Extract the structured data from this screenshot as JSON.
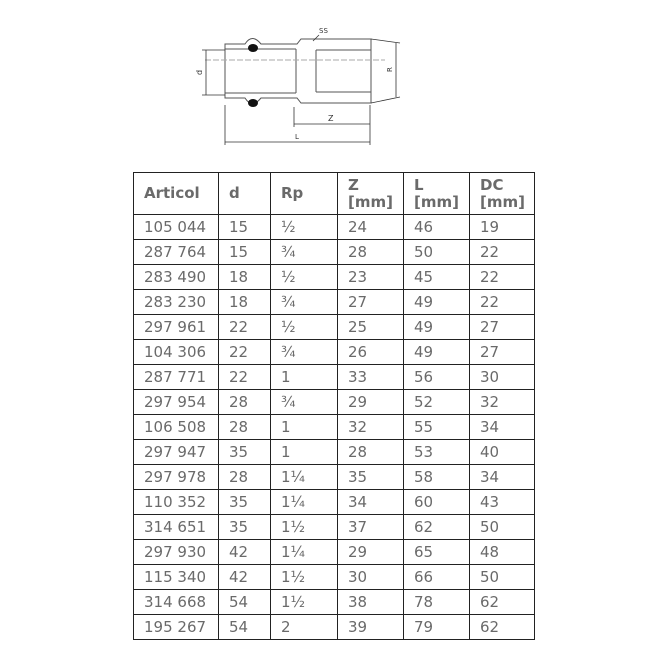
{
  "drawing": {
    "labels": {
      "ss": "SS",
      "d": "d",
      "r": "R",
      "z": "Z",
      "l": "L"
    }
  },
  "table": {
    "headers": [
      "Articol",
      "d",
      "Rp",
      "Z [mm]",
      "L [mm]",
      "DC [mm]"
    ],
    "rows": [
      [
        "105 044",
        "15",
        "½",
        "24",
        "46",
        "19"
      ],
      [
        "287 764",
        "15",
        "¾",
        "28",
        "50",
        "22"
      ],
      [
        "283 490",
        "18",
        "½",
        "23",
        "45",
        "22"
      ],
      [
        "283 230",
        "18",
        "¾",
        "27",
        "49",
        "22"
      ],
      [
        "297 961",
        "22",
        "½",
        "25",
        "49",
        "27"
      ],
      [
        "104 306",
        "22",
        "¾",
        "26",
        "49",
        "27"
      ],
      [
        "287 771",
        "22",
        "1",
        "33",
        "56",
        "30"
      ],
      [
        "297 954",
        "28",
        "¾",
        "29",
        "52",
        "32"
      ],
      [
        "106 508",
        "28",
        "1",
        "32",
        "55",
        "34"
      ],
      [
        "297 947",
        "35",
        "1",
        "28",
        "53",
        "40"
      ],
      [
        "297 978",
        "28",
        "1¼",
        "35",
        "58",
        "34"
      ],
      [
        "110 352",
        "35",
        "1¼",
        "34",
        "60",
        "43"
      ],
      [
        "314 651",
        "35",
        "1½",
        "37",
        "62",
        "50"
      ],
      [
        "297 930",
        "42",
        "1¼",
        "29",
        "65",
        "48"
      ],
      [
        "115 340",
        "42",
        "1½",
        "30",
        "66",
        "50"
      ],
      [
        "314 668",
        "54",
        "1½",
        "38",
        "78",
        "62"
      ],
      [
        "195 267",
        "54",
        "2",
        "39",
        "79",
        "62"
      ]
    ]
  }
}
